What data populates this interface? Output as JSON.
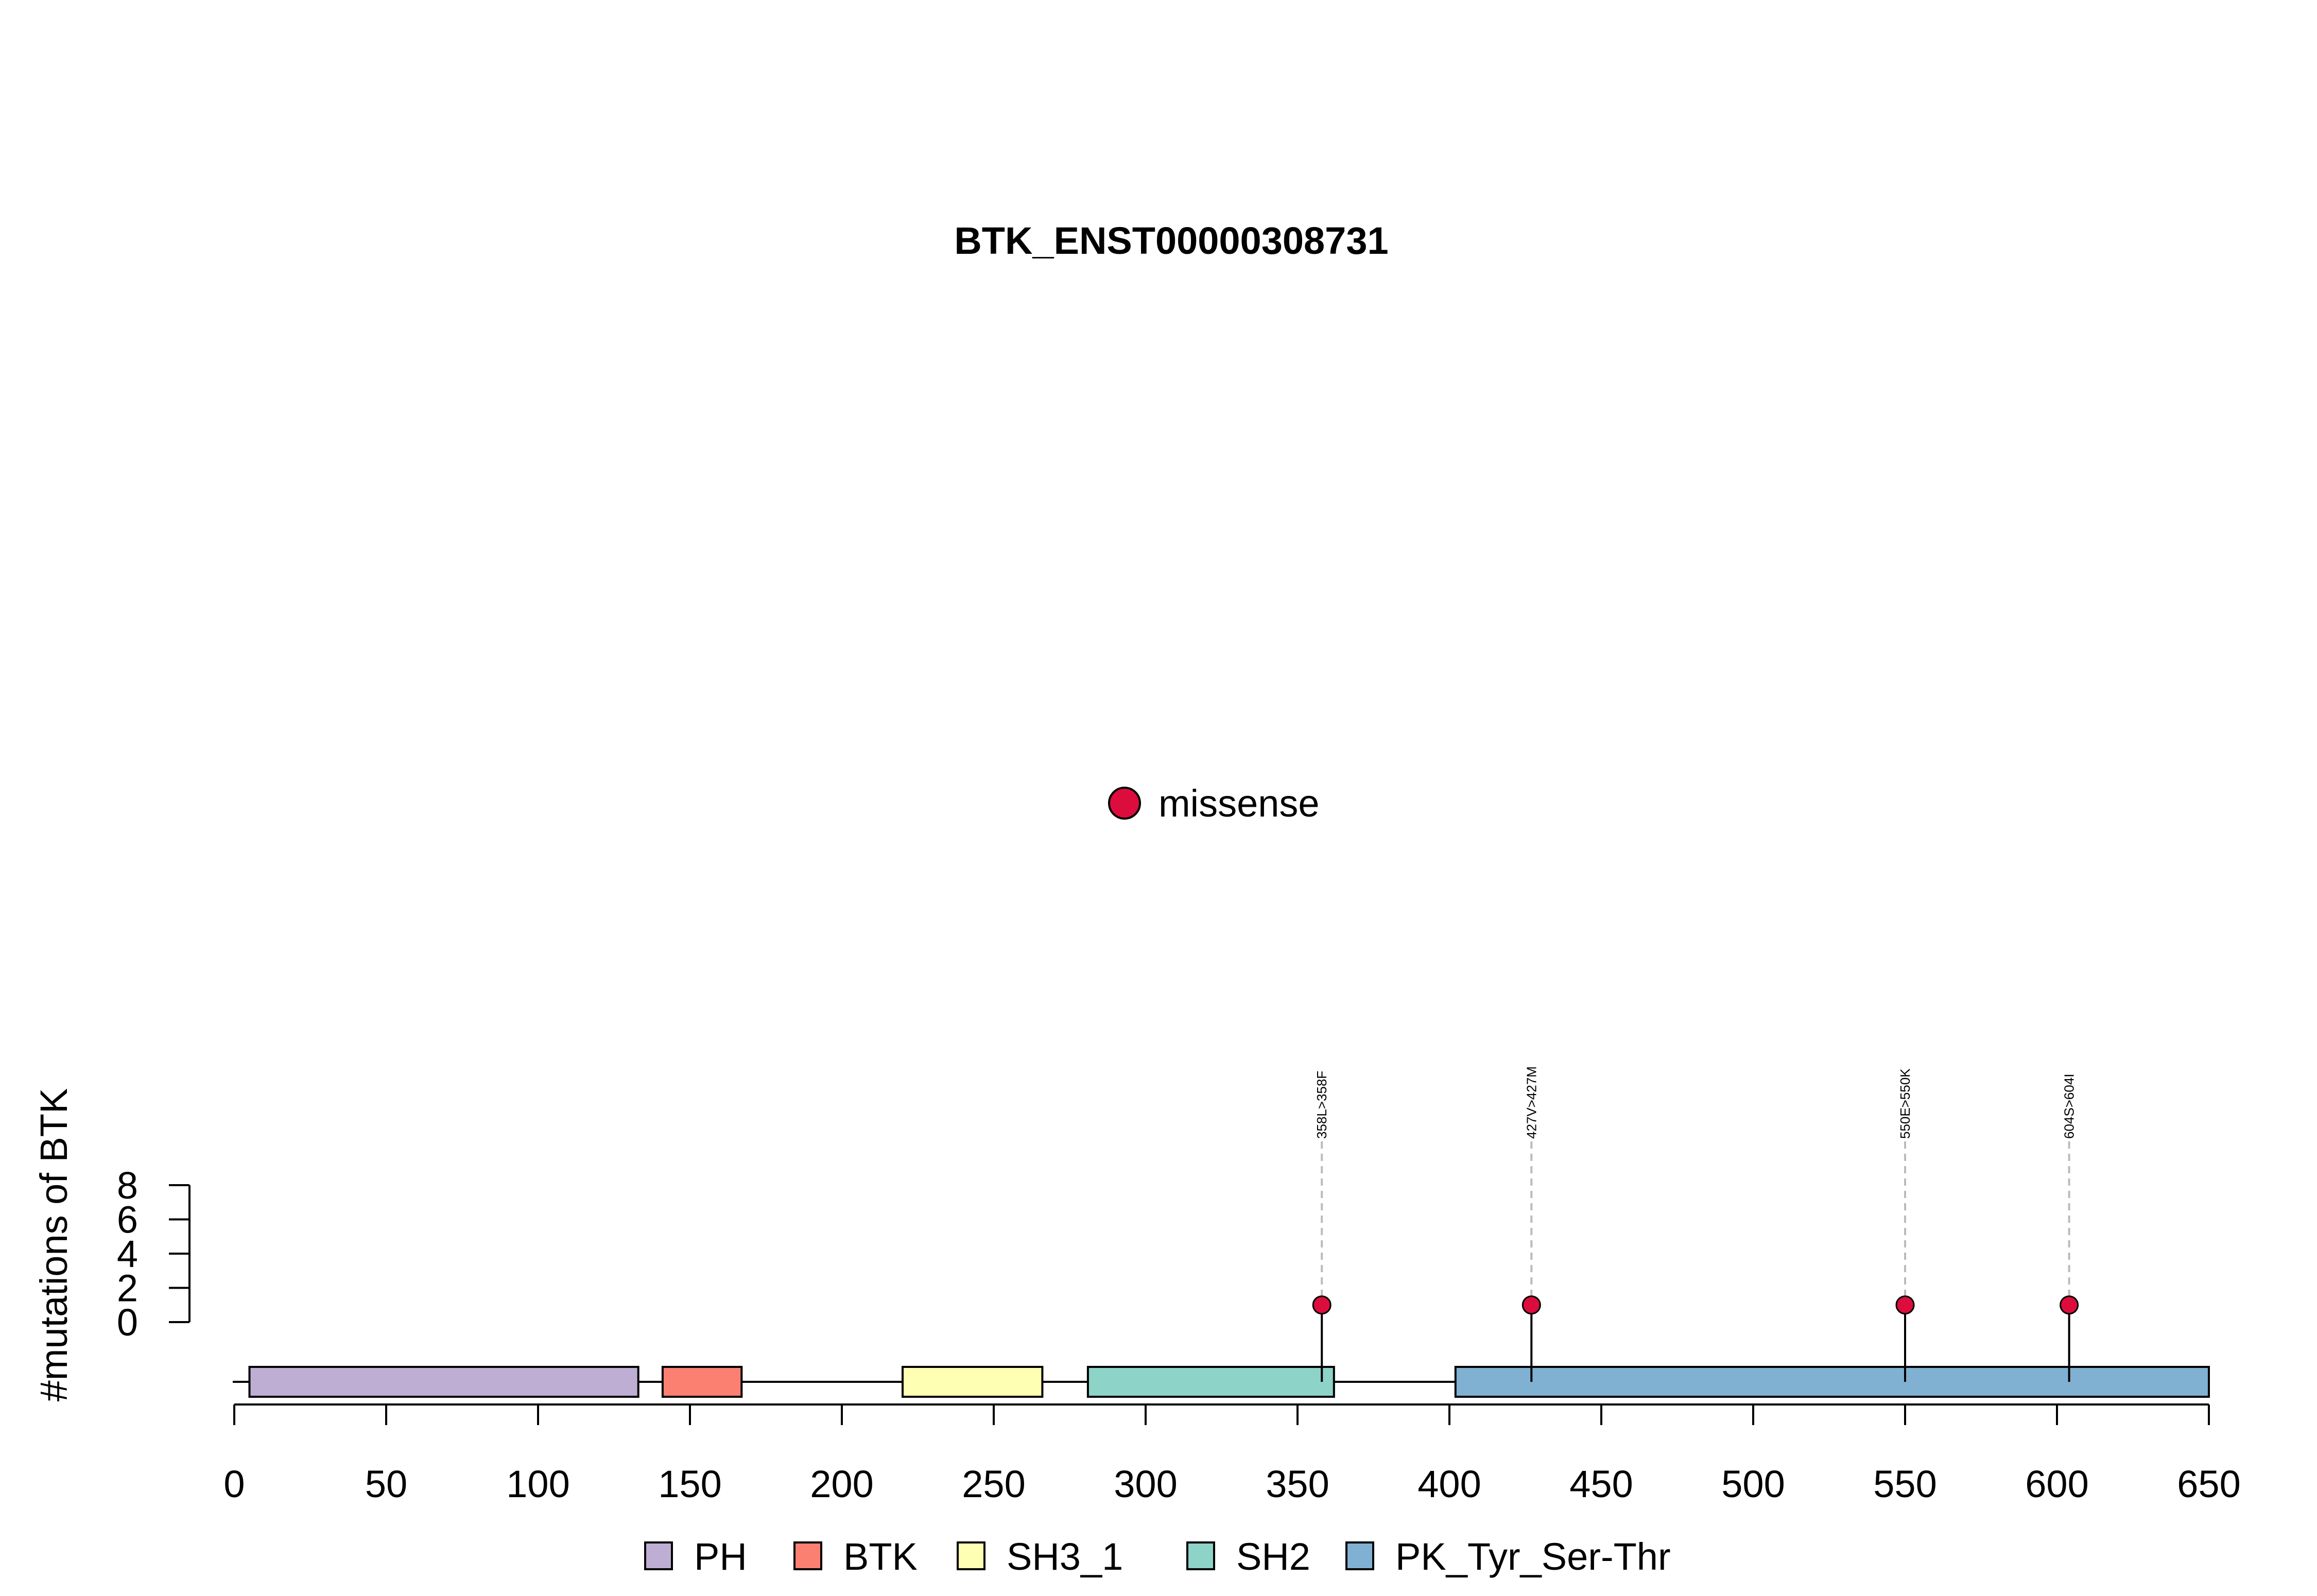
{
  "chart_data": {
    "type": "lollipop",
    "title": "BTK_ENST00000308731",
    "ylabel": "#mutations of BTK",
    "xlim": [
      0,
      650
    ],
    "x_ticks": [
      0,
      50,
      100,
      150,
      200,
      250,
      300,
      350,
      400,
      450,
      500,
      550,
      600,
      650
    ],
    "ylim": [
      0,
      8
    ],
    "y_ticks": [
      0,
      2,
      4,
      6,
      8
    ],
    "protein_length": 650,
    "domains": [
      {
        "name": "PH",
        "start": 5,
        "end": 133,
        "color": "#BEAED4"
      },
      {
        "name": "BTK",
        "start": 141,
        "end": 167,
        "color": "#FB8072"
      },
      {
        "name": "SH3_1",
        "start": 220,
        "end": 266,
        "color": "#FFFFB3"
      },
      {
        "name": "SH2",
        "start": 281,
        "end": 362,
        "color": "#8DD3C7"
      },
      {
        "name": "PK_Tyr_Ser-Thr",
        "start": 402,
        "end": 650,
        "color": "#80B1D3"
      }
    ],
    "mutations": [
      {
        "position": 358,
        "label": "358L>358F",
        "count": 1,
        "type": "missense"
      },
      {
        "position": 427,
        "label": "427V>427M",
        "count": 1,
        "type": "missense"
      },
      {
        "position": 550,
        "label": "550E>550K",
        "count": 1,
        "type": "missense"
      },
      {
        "position": 604,
        "label": "604S>604I",
        "count": 1,
        "type": "missense"
      }
    ],
    "mutation_legend": [
      {
        "name": "missense",
        "color": "#DC0D3D"
      }
    ],
    "domain_legend_placement": "bottom",
    "mutation_legend_placement": "center"
  }
}
